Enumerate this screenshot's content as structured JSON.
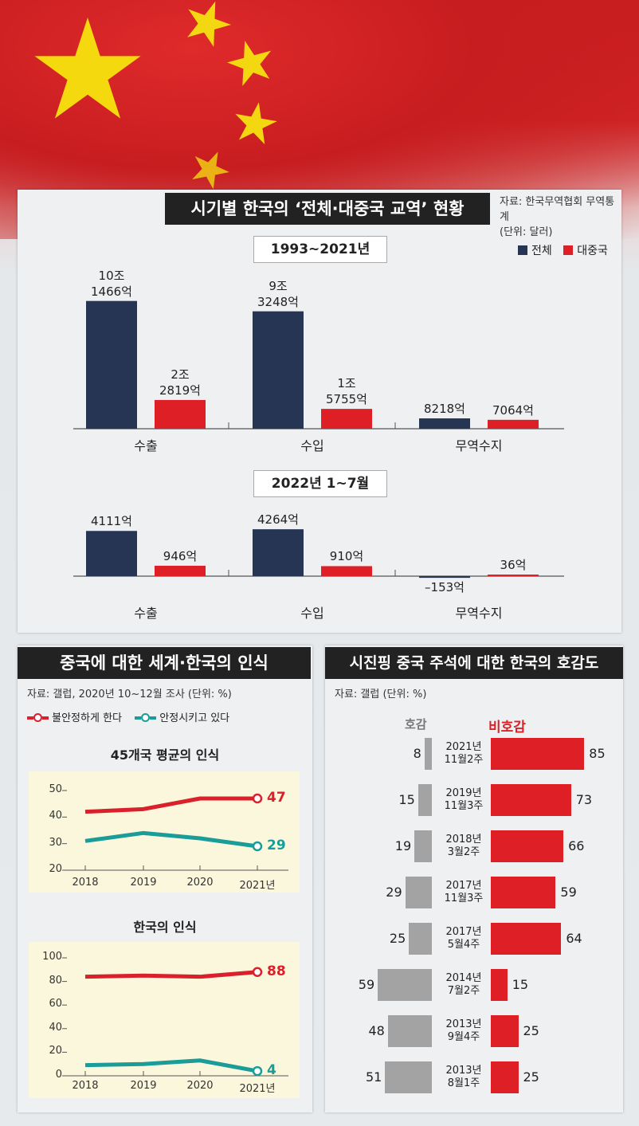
{
  "header": {
    "title": "시기별 한국의 ‘전체·대중국 교역’ 현황",
    "source_line1": "자료: 한국무역협회 무역통계",
    "source_line2": "(단위: 달러)",
    "legend_total": "전체",
    "legend_china": "대중국"
  },
  "colors": {
    "total": "#263553",
    "china": "#de1f26",
    "red_line": "#d9202b",
    "teal_line": "#1a9c99",
    "gray_bar": "#a3a3a3"
  },
  "trade_charts": [
    {
      "period": "1993~2021년",
      "groups": [
        {
          "category": "수출",
          "total": 1014.66,
          "china": 228.19,
          "total_label": [
            "10조",
            "1466억"
          ],
          "china_label": [
            "2조",
            "2819억"
          ]
        },
        {
          "category": "수입",
          "total": 932.48,
          "china": 157.55,
          "total_label": [
            "9조",
            "3248억"
          ],
          "china_label": [
            "1조",
            "5755억"
          ]
        },
        {
          "category": "무역수지",
          "total": 82.18,
          "china": 70.64,
          "total_label": [
            "8218억"
          ],
          "china_label": [
            "7064억"
          ]
        }
      ]
    },
    {
      "period": "2022년 1~7월",
      "groups": [
        {
          "category": "수출",
          "total": 4111,
          "china": 946,
          "total_label": [
            "4111억"
          ],
          "china_label": [
            "946억"
          ]
        },
        {
          "category": "수입",
          "total": 4264,
          "china": 910,
          "total_label": [
            "4264억"
          ],
          "china_label": [
            "910억"
          ]
        },
        {
          "category": "무역수지",
          "total": -153,
          "china": 36,
          "total_label": [
            "–153억"
          ],
          "china_label": [
            "36억"
          ]
        }
      ]
    }
  ],
  "perception": {
    "title": "중국에 대한 세계·한국의 인식",
    "source": "자료: 갤럽, 2020년 10~12월 조사 (단위: %)",
    "legend_unstable": "불안정하게 한다",
    "legend_stable": "안정시키고 있다"
  },
  "chart_data": [
    {
      "type": "line",
      "title": "45개국 평균의 인식",
      "x": [
        "2018",
        "2019",
        "2020",
        "2021년"
      ],
      "ylim": [
        20,
        50
      ],
      "yticks": [
        "20",
        "30",
        "40",
        "50"
      ],
      "series": [
        {
          "name": "불안정하게 한다",
          "values": [
            42,
            43,
            47,
            47
          ],
          "end_label": "47"
        },
        {
          "name": "안정시키고 있다",
          "values": [
            31,
            34,
            32,
            29
          ],
          "end_label": "29"
        }
      ]
    },
    {
      "type": "line",
      "title": "한국의 인식",
      "x": [
        "2018",
        "2019",
        "2020",
        "2021년"
      ],
      "ylim": [
        0,
        100
      ],
      "yticks": [
        "0",
        "20",
        "40",
        "60",
        "80",
        "100"
      ],
      "series": [
        {
          "name": "불안정하게 한다",
          "values": [
            84,
            85,
            84,
            88
          ],
          "end_label": "88"
        },
        {
          "name": "안정시키고 있다",
          "values": [
            9,
            10,
            13,
            4
          ],
          "end_label": "4"
        }
      ]
    },
    {
      "type": "bar",
      "title": "시진핑 중국 주석에 대한 한국의 호감도",
      "source": "자료: 갤럽 (단위: %)",
      "favorable_label": "호감",
      "unfavorable_label": "비호감",
      "rows": [
        {
          "date": [
            "2021년",
            "11월2주"
          ],
          "favorable": 8,
          "unfavorable": 85
        },
        {
          "date": [
            "2019년",
            "11월3주"
          ],
          "favorable": 15,
          "unfavorable": 73
        },
        {
          "date": [
            "2018년",
            "3월2주"
          ],
          "favorable": 19,
          "unfavorable": 66
        },
        {
          "date": [
            "2017년",
            "11월3주"
          ],
          "favorable": 29,
          "unfavorable": 59
        },
        {
          "date": [
            "2017년",
            "5월4주"
          ],
          "favorable": 25,
          "unfavorable": 64
        },
        {
          "date": [
            "2014년",
            "7월2주"
          ],
          "favorable": 59,
          "unfavorable": 15
        },
        {
          "date": [
            "2013년",
            "9월4주"
          ],
          "favorable": 48,
          "unfavorable": 25
        },
        {
          "date": [
            "2013년",
            "8월1주"
          ],
          "favorable": 51,
          "unfavorable": 25
        }
      ]
    }
  ]
}
